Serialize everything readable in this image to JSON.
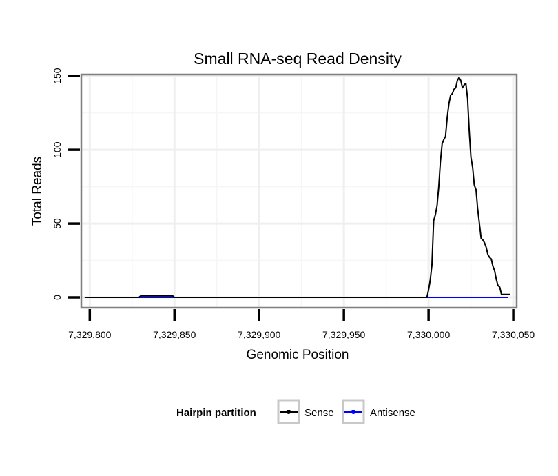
{
  "chart_data": {
    "type": "line",
    "title": "Small RNA-seq Read Density",
    "xlabel": "Genomic Position",
    "ylabel": "Total Reads",
    "xlim": [
      7329795,
      7330052
    ],
    "ylim": [
      -7,
      151
    ],
    "x_ticks": [
      {
        "value": 7329800,
        "label": "7,329,800"
      },
      {
        "value": 7329850,
        "label": "7,329,850"
      },
      {
        "value": 7329900,
        "label": "7,329,900"
      },
      {
        "value": 7329950,
        "label": "7,329,950"
      },
      {
        "value": 7330000,
        "label": "7,330,000"
      },
      {
        "value": 7330050,
        "label": "7,330,050"
      }
    ],
    "y_ticks": [
      {
        "value": 0,
        "label": "0"
      },
      {
        "value": 50,
        "label": "50"
      },
      {
        "value": 100,
        "label": "100"
      },
      {
        "value": 150,
        "label": "150"
      }
    ],
    "grid": true,
    "legend_title": "Hairpin partition",
    "legend_position": "bottom",
    "series": [
      {
        "name": "Sense",
        "color": "#000000",
        "x": [
          7329797,
          7329829,
          7329830,
          7329849,
          7329850,
          7329999,
          7330000,
          7330001,
          7330002,
          7330003,
          7330004,
          7330005,
          7330006,
          7330007,
          7330008,
          7330009,
          7330010,
          7330011,
          7330012,
          7330013,
          7330014,
          7330015,
          7330016,
          7330017,
          7330018,
          7330019,
          7330020,
          7330021,
          7330022,
          7330023,
          7330024,
          7330025,
          7330026,
          7330027,
          7330028,
          7330029,
          7330030,
          7330031,
          7330032,
          7330033,
          7330034,
          7330035,
          7330036,
          7330037,
          7330038,
          7330039,
          7330040,
          7330041,
          7330042,
          7330043,
          7330044,
          7330045,
          7330046,
          7330047,
          7330048
        ],
        "y": [
          0,
          0,
          1,
          1,
          0,
          0,
          5,
          12,
          22,
          52,
          56,
          62,
          75,
          92,
          104,
          107,
          109,
          122,
          131,
          137,
          138,
          141,
          142,
          147,
          149,
          147,
          142,
          144,
          145,
          135,
          113,
          95,
          88,
          76,
          73,
          60,
          50,
          40,
          39,
          37,
          34,
          29,
          27,
          26,
          21,
          18,
          12,
          8,
          7,
          2,
          2,
          2,
          2,
          2,
          2
        ]
      },
      {
        "name": "Antisense",
        "color": "#0000ff",
        "x": [
          7329797,
          7330047
        ],
        "y": [
          0,
          0
        ]
      }
    ]
  }
}
